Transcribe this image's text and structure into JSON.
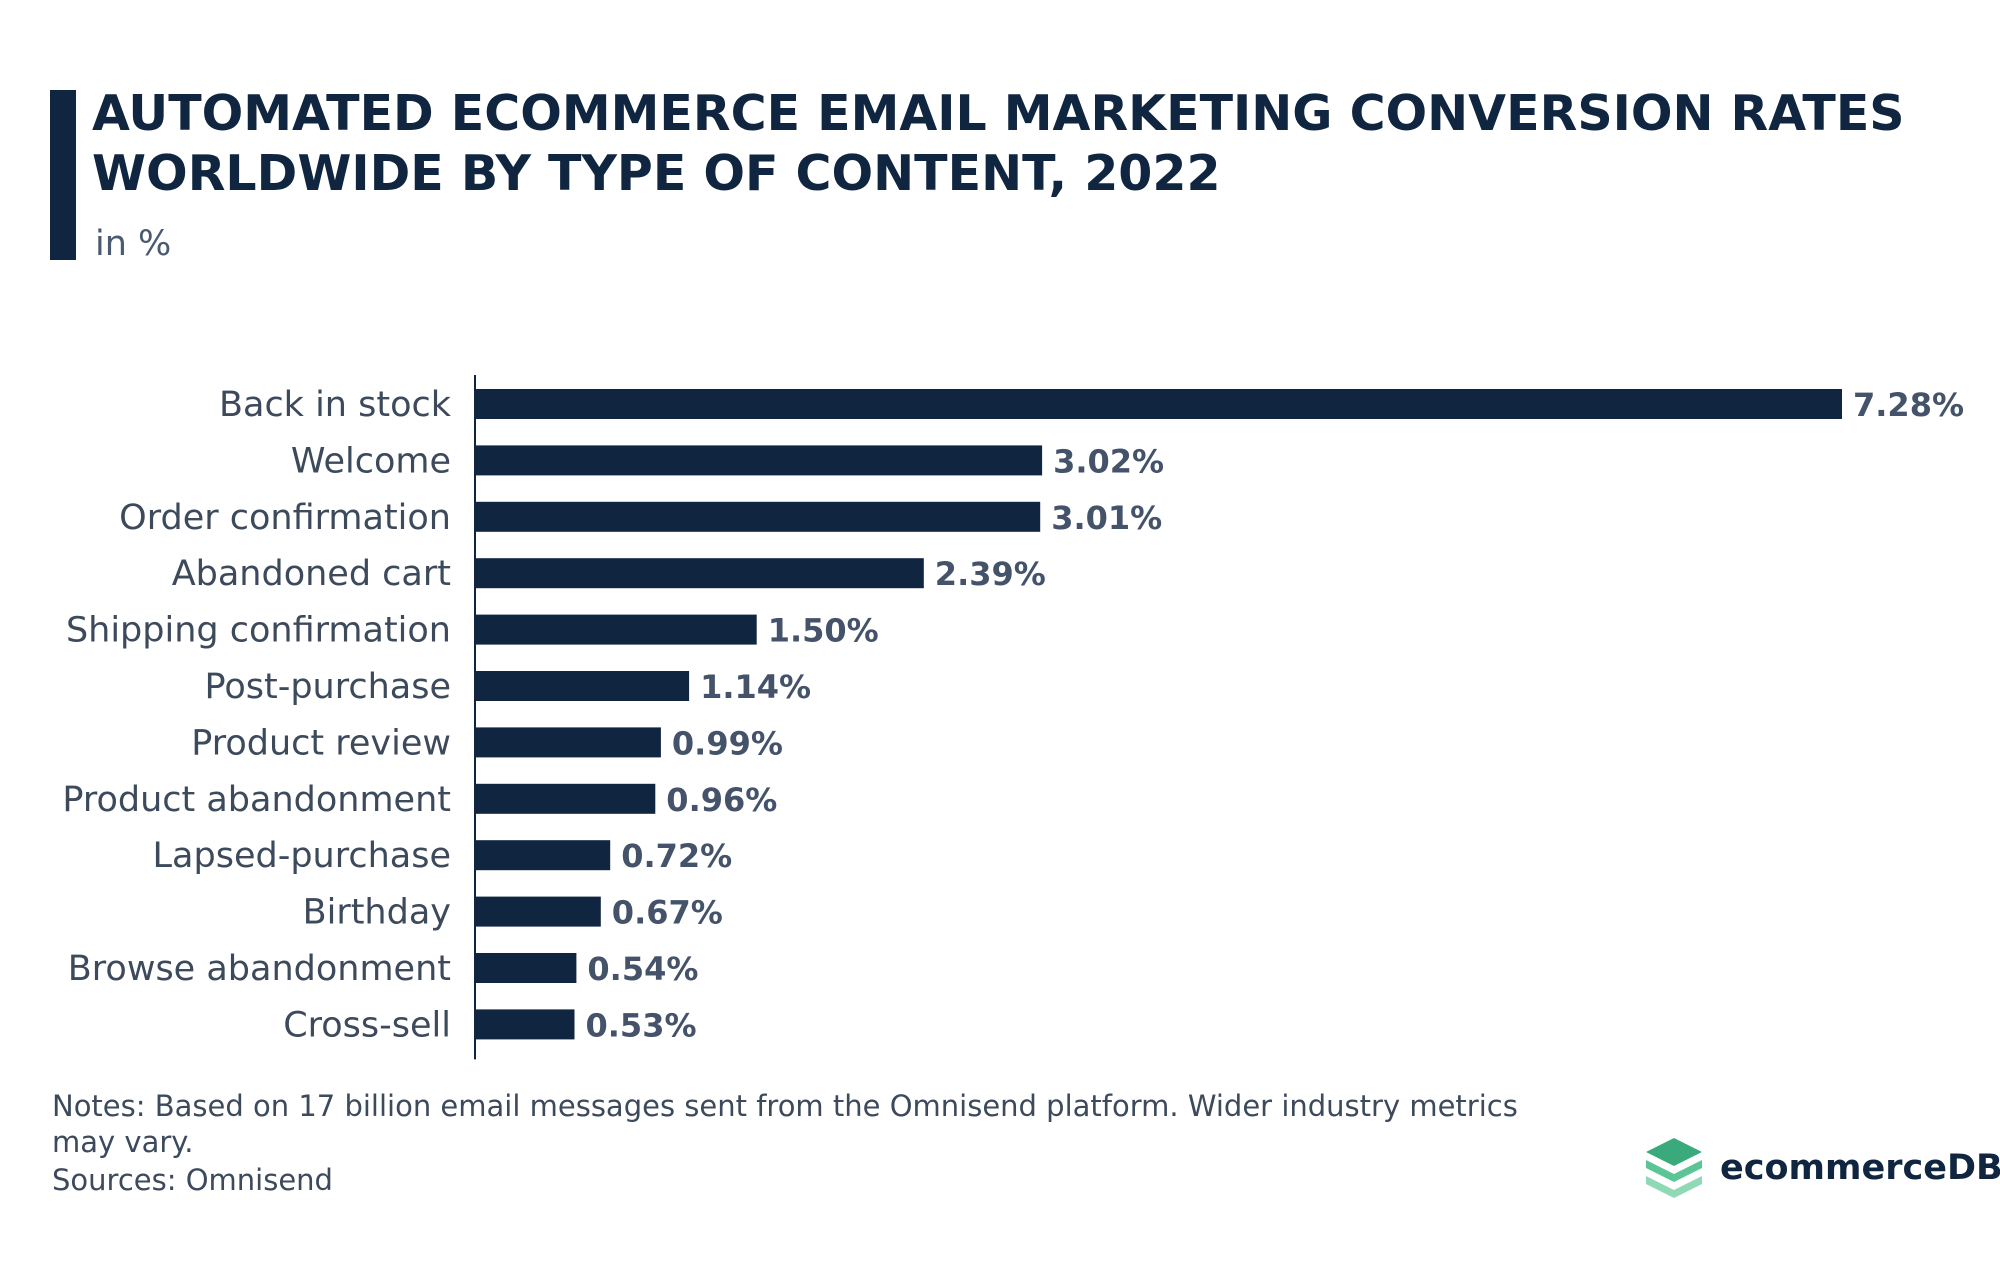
{
  "header": {
    "title": "AUTOMATED ECOMMERCE EMAIL MARKETING CONVERSION RATES WORLDWIDE BY TYPE OF CONTENT, 2022",
    "subtitle": "in %"
  },
  "footer": {
    "notes": "Notes: Based on 17 billion email messages sent from the Omnisend platform. Wider industry metrics may vary.",
    "sources": "Sources: Omnisend",
    "brand": "ecommerceDB",
    "brand_icon": "stacked-layers-icon"
  },
  "colors": {
    "bar": "#10253f",
    "category_label": "#3d4a5c",
    "value_label": "#44526a",
    "axis": "#10253f",
    "brand_green": "#3aaa7c"
  },
  "chart_data": {
    "type": "bar",
    "orientation": "horizontal",
    "categories": [
      "Back in stock",
      "Welcome",
      "Order confirmation",
      "Abandoned cart",
      "Shipping confirmation",
      "Post-purchase",
      "Product review",
      "Product abandonment",
      "Lapsed-purchase",
      "Birthday",
      "Browse abandonment",
      "Cross-sell"
    ],
    "values": [
      7.28,
      3.02,
      3.01,
      2.39,
      1.5,
      1.14,
      0.99,
      0.96,
      0.72,
      0.67,
      0.54,
      0.53
    ],
    "value_labels": [
      "7.28%",
      "3.02%",
      "3.01%",
      "2.39%",
      "1.50%",
      "1.14%",
      "0.99%",
      "0.96%",
      "0.72%",
      "0.67%",
      "0.54%",
      "0.53%"
    ],
    "title": "AUTOMATED ECOMMERCE EMAIL MARKETING CONVERSION RATES WORLDWIDE BY TYPE OF CONTENT, 2022",
    "unit": "in %",
    "xlim": [
      0,
      7.28
    ],
    "grid": false,
    "legend": "none"
  }
}
